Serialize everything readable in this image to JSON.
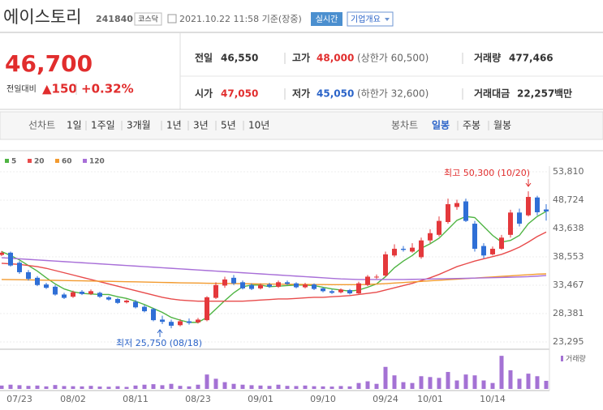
{
  "header": {
    "name": "에이스토리",
    "code": "241840",
    "market": "코스닥",
    "time": "2021.10.22 11:58 기준(장중)",
    "buttons": [
      "실시간",
      "기업개요"
    ]
  },
  "quote": {
    "price": "46,700",
    "change_label": "전일대비",
    "change": "▲150",
    "rate": "+0.32%",
    "items": [
      {
        "label": "전일",
        "value": "46,550"
      },
      {
        "label": "고가",
        "value": "48,000",
        "note": "(상한가 60,500)"
      },
      {
        "label": "거래량",
        "value": "477,466"
      },
      {
        "label": "시가",
        "value": "47,050"
      },
      {
        "label": "저가",
        "value": "45,050",
        "note": "(하한가 32,600)"
      },
      {
        "label": "거래대금",
        "value": "22,257",
        "unit": "백만"
      }
    ]
  },
  "tabs": {
    "line": [
      "선차트",
      "1일",
      "1주일",
      "3개월",
      "1년",
      "3년",
      "5년",
      "10년"
    ],
    "candle": [
      "봉차트",
      "일봉",
      "주봉",
      "월봉"
    ]
  },
  "chart_data": {
    "type": "candlestick",
    "up_color": "#e4393c",
    "down_color": "#2f6fd6",
    "grid": true,
    "categories": [
      null,
      null,
      "07/23",
      null,
      null,
      null,
      null,
      null,
      "08/02",
      null,
      null,
      null,
      null,
      null,
      null,
      "08/11",
      null,
      null,
      null,
      null,
      null,
      null,
      "08/23",
      null,
      null,
      null,
      null,
      null,
      null,
      "09/01",
      null,
      null,
      null,
      null,
      null,
      null,
      "09/10",
      null,
      null,
      null,
      null,
      null,
      null,
      "09/24",
      null,
      null,
      null,
      null,
      "10/01",
      null,
      null,
      null,
      null,
      null,
      null,
      "10/14",
      null,
      null,
      null,
      null,
      null,
      null
    ],
    "open": [
      38900,
      39300,
      37500,
      35800,
      34800,
      33600,
      33200,
      31800,
      31400,
      32300,
      31900,
      32100,
      31300,
      31000,
      30400,
      30500,
      29600,
      29200,
      27300,
      26900,
      26300,
      27000,
      26800,
      27200,
      31200,
      33400,
      34800,
      34000,
      33500,
      32900,
      33600,
      33200,
      34000,
      33800,
      33100,
      33600,
      32900,
      32400,
      32200,
      32600,
      32000,
      33500,
      34900,
      35200,
      38800,
      40000,
      39500,
      38500,
      41500,
      42500,
      44800,
      47500,
      48500,
      44500,
      40500,
      39000,
      40000,
      42500,
      46500,
      46000,
      49200,
      47050
    ],
    "high": [
      39600,
      39500,
      37800,
      36200,
      35100,
      33900,
      33500,
      32100,
      32500,
      32600,
      32700,
      32300,
      31500,
      31200,
      30900,
      30800,
      29900,
      29400,
      28000,
      27300,
      27400,
      27500,
      27600,
      31500,
      34000,
      35000,
      35300,
      34300,
      33800,
      33800,
      33900,
      34300,
      34300,
      34000,
      33900,
      33800,
      33100,
      32700,
      32900,
      32800,
      34100,
      35300,
      35400,
      39500,
      40800,
      40500,
      41000,
      42000,
      43500,
      45800,
      49000,
      48800,
      49000,
      45000,
      41000,
      40400,
      42500,
      47000,
      47200,
      50300,
      49500,
      48000
    ],
    "low": [
      38700,
      36800,
      35500,
      34300,
      33300,
      32800,
      31600,
      31000,
      31200,
      31700,
      31700,
      31200,
      30700,
      30100,
      30200,
      29300,
      28600,
      27000,
      26500,
      25750,
      26100,
      26400,
      26600,
      27000,
      31000,
      33000,
      33500,
      32700,
      32600,
      32700,
      33000,
      33000,
      33500,
      32900,
      32900,
      32600,
      32200,
      31900,
      32000,
      31800,
      31900,
      33300,
      34600,
      35000,
      38500,
      39500,
      39300,
      38200,
      41000,
      42200,
      44500,
      47000,
      44800,
      39500,
      38300,
      38800,
      39800,
      42000,
      44000,
      45800,
      46000,
      45050
    ],
    "close": [
      39300,
      37000,
      35800,
      34600,
      33500,
      33000,
      31800,
      31200,
      32200,
      31900,
      32400,
      31400,
      30900,
      30300,
      30700,
      29500,
      28800,
      27200,
      26900,
      26200,
      27000,
      26700,
      27300,
      31300,
      33500,
      34500,
      33800,
      32900,
      32800,
      33500,
      33200,
      34000,
      33700,
      33100,
      33600,
      32800,
      32400,
      32100,
      32700,
      32000,
      33800,
      35000,
      35000,
      39000,
      40000,
      39800,
      40200,
      41500,
      42800,
      45000,
      48000,
      48200,
      45000,
      40000,
      38800,
      40000,
      42000,
      46500,
      44500,
      49300,
      46550,
      46700
    ],
    "series": [
      {
        "name": "5",
        "color": "#4fb443",
        "values": [
          39500,
          38800,
          38000,
          37000,
          36000,
          34800,
          33700,
          32800,
          32300,
          32000,
          31900,
          31800,
          31800,
          31400,
          31100,
          30600,
          30000,
          29300,
          28600,
          27700,
          27200,
          26800,
          26800,
          27700,
          29200,
          30700,
          32100,
          33200,
          33500,
          33500,
          33200,
          33300,
          33400,
          33500,
          33500,
          33400,
          33100,
          32800,
          32600,
          32400,
          32600,
          33100,
          33700,
          35000,
          36600,
          37800,
          38800,
          40100,
          40900,
          41900,
          43500,
          45100,
          45800,
          45600,
          44000,
          42400,
          41200,
          41500,
          42400,
          44500,
          45800,
          46700
        ]
      },
      {
        "name": "20",
        "color": "#e84b4b",
        "values": [
          37400,
          37300,
          37200,
          37000,
          36800,
          36500,
          36100,
          35700,
          35300,
          34900,
          34500,
          34100,
          33700,
          33300,
          32900,
          32500,
          32100,
          31700,
          31300,
          31000,
          30800,
          30700,
          30600,
          30600,
          30600,
          30600,
          30600,
          30600,
          30700,
          30800,
          30900,
          31000,
          31000,
          31100,
          31200,
          31300,
          31300,
          31400,
          31500,
          31600,
          31800,
          32000,
          32200,
          32600,
          33000,
          33400,
          33800,
          34300,
          34800,
          35400,
          36100,
          36800,
          37300,
          37800,
          38200,
          38600,
          39000,
          39600,
          40300,
          41200,
          42200,
          43000
        ]
      },
      {
        "name": "60",
        "color": "#f29a2e",
        "values": [
          34500,
          34480,
          34450,
          34420,
          34400,
          34370,
          34340,
          34310,
          34280,
          34250,
          34220,
          34190,
          34160,
          34130,
          34100,
          34070,
          34040,
          34000,
          33970,
          33940,
          33900,
          33870,
          33850,
          33820,
          33800,
          33780,
          33760,
          33740,
          33720,
          33700,
          33680,
          33660,
          33640,
          33620,
          33600,
          33590,
          33580,
          33570,
          33560,
          33560,
          33570,
          33620,
          33680,
          33750,
          33850,
          33950,
          34050,
          34150,
          34250,
          34350,
          34450,
          34550,
          34650,
          34750,
          34850,
          34950,
          35050,
          35150,
          35250,
          35350,
          35450,
          35500
        ]
      },
      {
        "name": "120",
        "color": "#a86fd8",
        "values": [
          38400,
          38300,
          38200,
          38100,
          38000,
          37900,
          37800,
          37700,
          37600,
          37500,
          37400,
          37300,
          37200,
          37100,
          37000,
          36900,
          36800,
          36700,
          36600,
          36500,
          36400,
          36300,
          36200,
          36100,
          36000,
          35900,
          35800,
          35700,
          35600,
          35500,
          35400,
          35300,
          35200,
          35100,
          35000,
          34900,
          34800,
          34700,
          34600,
          34550,
          34500,
          34500,
          34500,
          34500,
          34500,
          34500,
          34520,
          34550,
          34580,
          34610,
          34640,
          34670,
          34700,
          34740,
          34780,
          34820,
          34860,
          34900,
          34950,
          35000,
          35100,
          35200
        ]
      }
    ],
    "ylim": [
      23295,
      53810
    ],
    "yticks": [
      {
        "value": 53810,
        "label": "53,810"
      },
      {
        "value": 48724,
        "label": "48,724"
      },
      {
        "value": 43638,
        "label": "43,638"
      },
      {
        "value": 38553,
        "label": "38,553"
      },
      {
        "value": 33467,
        "label": "33,467"
      },
      {
        "value": 28381,
        "label": "28,381"
      },
      {
        "value": 23295,
        "label": "23,295"
      }
    ],
    "annotations": {
      "high": "최고 50,300 (10/20)",
      "low": "최저 25,750 (08/18)"
    },
    "volume": {
      "name": "거래량",
      "color": "#a472d4",
      "ylim": [
        0,
        2100000
      ],
      "values": [
        200000,
        250000,
        220000,
        180000,
        200000,
        150000,
        230000,
        170000,
        160000,
        150000,
        180000,
        140000,
        130000,
        160000,
        120000,
        200000,
        250000,
        280000,
        220000,
        300000,
        180000,
        150000,
        250000,
        850000,
        600000,
        400000,
        300000,
        250000,
        220000,
        200000,
        180000,
        250000,
        180000,
        170000,
        200000,
        160000,
        150000,
        140000,
        170000,
        150000,
        350000,
        450000,
        300000,
        1300000,
        800000,
        400000,
        350000,
        750000,
        700000,
        650000,
        1000000,
        500000,
        850000,
        800000,
        500000,
        350000,
        1950000,
        1100000,
        600000,
        900000,
        750000,
        477466
      ]
    }
  }
}
